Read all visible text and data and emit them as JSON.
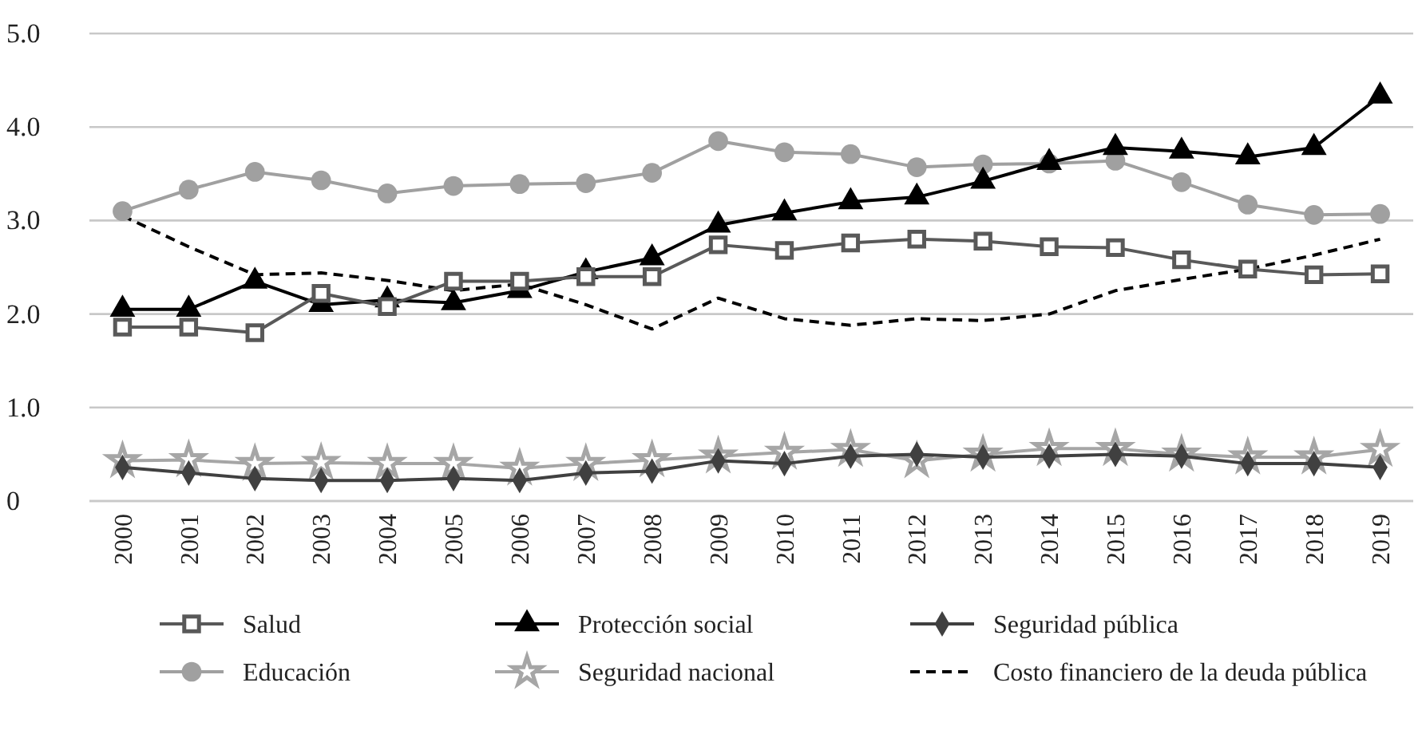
{
  "chart_data": {
    "type": "line",
    "categories": [
      "2000",
      "2001",
      "2002",
      "2003",
      "2004",
      "2005",
      "2006",
      "2007",
      "2008",
      "2009",
      "2010",
      "2011",
      "2012",
      "2013",
      "2014",
      "2015",
      "2016",
      "2017",
      "2018",
      "2019"
    ],
    "ylim": [
      0,
      5
    ],
    "yticks": [
      {
        "value": 0,
        "label": "0"
      },
      {
        "value": 1,
        "label": "1.0"
      },
      {
        "value": 2,
        "label": "2.0"
      },
      {
        "value": 3,
        "label": "3.0"
      },
      {
        "value": 4,
        "label": "4.0"
      },
      {
        "value": 5,
        "label": "5.0"
      }
    ],
    "grid": "y",
    "legend": "bottom",
    "series": [
      {
        "name": "Salud",
        "color": "#595959",
        "marker": "square",
        "line_style": "solid",
        "values": [
          1.86,
          1.86,
          1.8,
          2.22,
          2.08,
          2.35,
          2.35,
          2.4,
          2.4,
          2.74,
          2.68,
          2.76,
          2.8,
          2.78,
          2.72,
          2.71,
          2.58,
          2.48,
          2.42,
          2.43
        ]
      },
      {
        "name": "Protección social",
        "color": "#000000",
        "marker": "triangle",
        "line_style": "solid",
        "values": [
          2.05,
          2.05,
          2.35,
          2.1,
          2.15,
          2.12,
          2.25,
          2.45,
          2.6,
          2.95,
          3.08,
          3.2,
          3.25,
          3.42,
          3.62,
          3.78,
          3.74,
          3.68,
          3.78,
          4.33
        ]
      },
      {
        "name": "Seguridad pública",
        "color": "#404040",
        "marker": "diamond",
        "line_style": "solid",
        "values": [
          0.36,
          0.3,
          0.24,
          0.22,
          0.22,
          0.24,
          0.22,
          0.3,
          0.32,
          0.43,
          0.4,
          0.48,
          0.5,
          0.47,
          0.48,
          0.5,
          0.48,
          0.4,
          0.4,
          0.36
        ]
      },
      {
        "name": "Educación",
        "color": "#a0a0a0",
        "marker": "circle",
        "line_style": "solid",
        "values": [
          3.1,
          3.33,
          3.52,
          3.43,
          3.29,
          3.37,
          3.39,
          3.4,
          3.51,
          3.85,
          3.73,
          3.71,
          3.57,
          3.6,
          3.61,
          3.64,
          3.41,
          3.17,
          3.06,
          3.07
        ]
      },
      {
        "name": "Seguridad nacional",
        "color": "#a6a6a6",
        "marker": "star",
        "line_style": "solid",
        "values": [
          0.43,
          0.44,
          0.4,
          0.41,
          0.4,
          0.4,
          0.35,
          0.4,
          0.44,
          0.48,
          0.52,
          0.55,
          0.43,
          0.5,
          0.56,
          0.56,
          0.5,
          0.47,
          0.47,
          0.55
        ]
      },
      {
        "name": "Costo financiero de la deuda pública",
        "color": "#000000",
        "marker": "none",
        "line_style": "dashed",
        "values": [
          3.05,
          2.72,
          2.42,
          2.44,
          2.36,
          2.25,
          2.32,
          2.1,
          1.84,
          2.17,
          1.95,
          1.88,
          1.95,
          1.93,
          2.0,
          2.25,
          2.37,
          2.48,
          2.63,
          2.8
        ]
      }
    ]
  }
}
